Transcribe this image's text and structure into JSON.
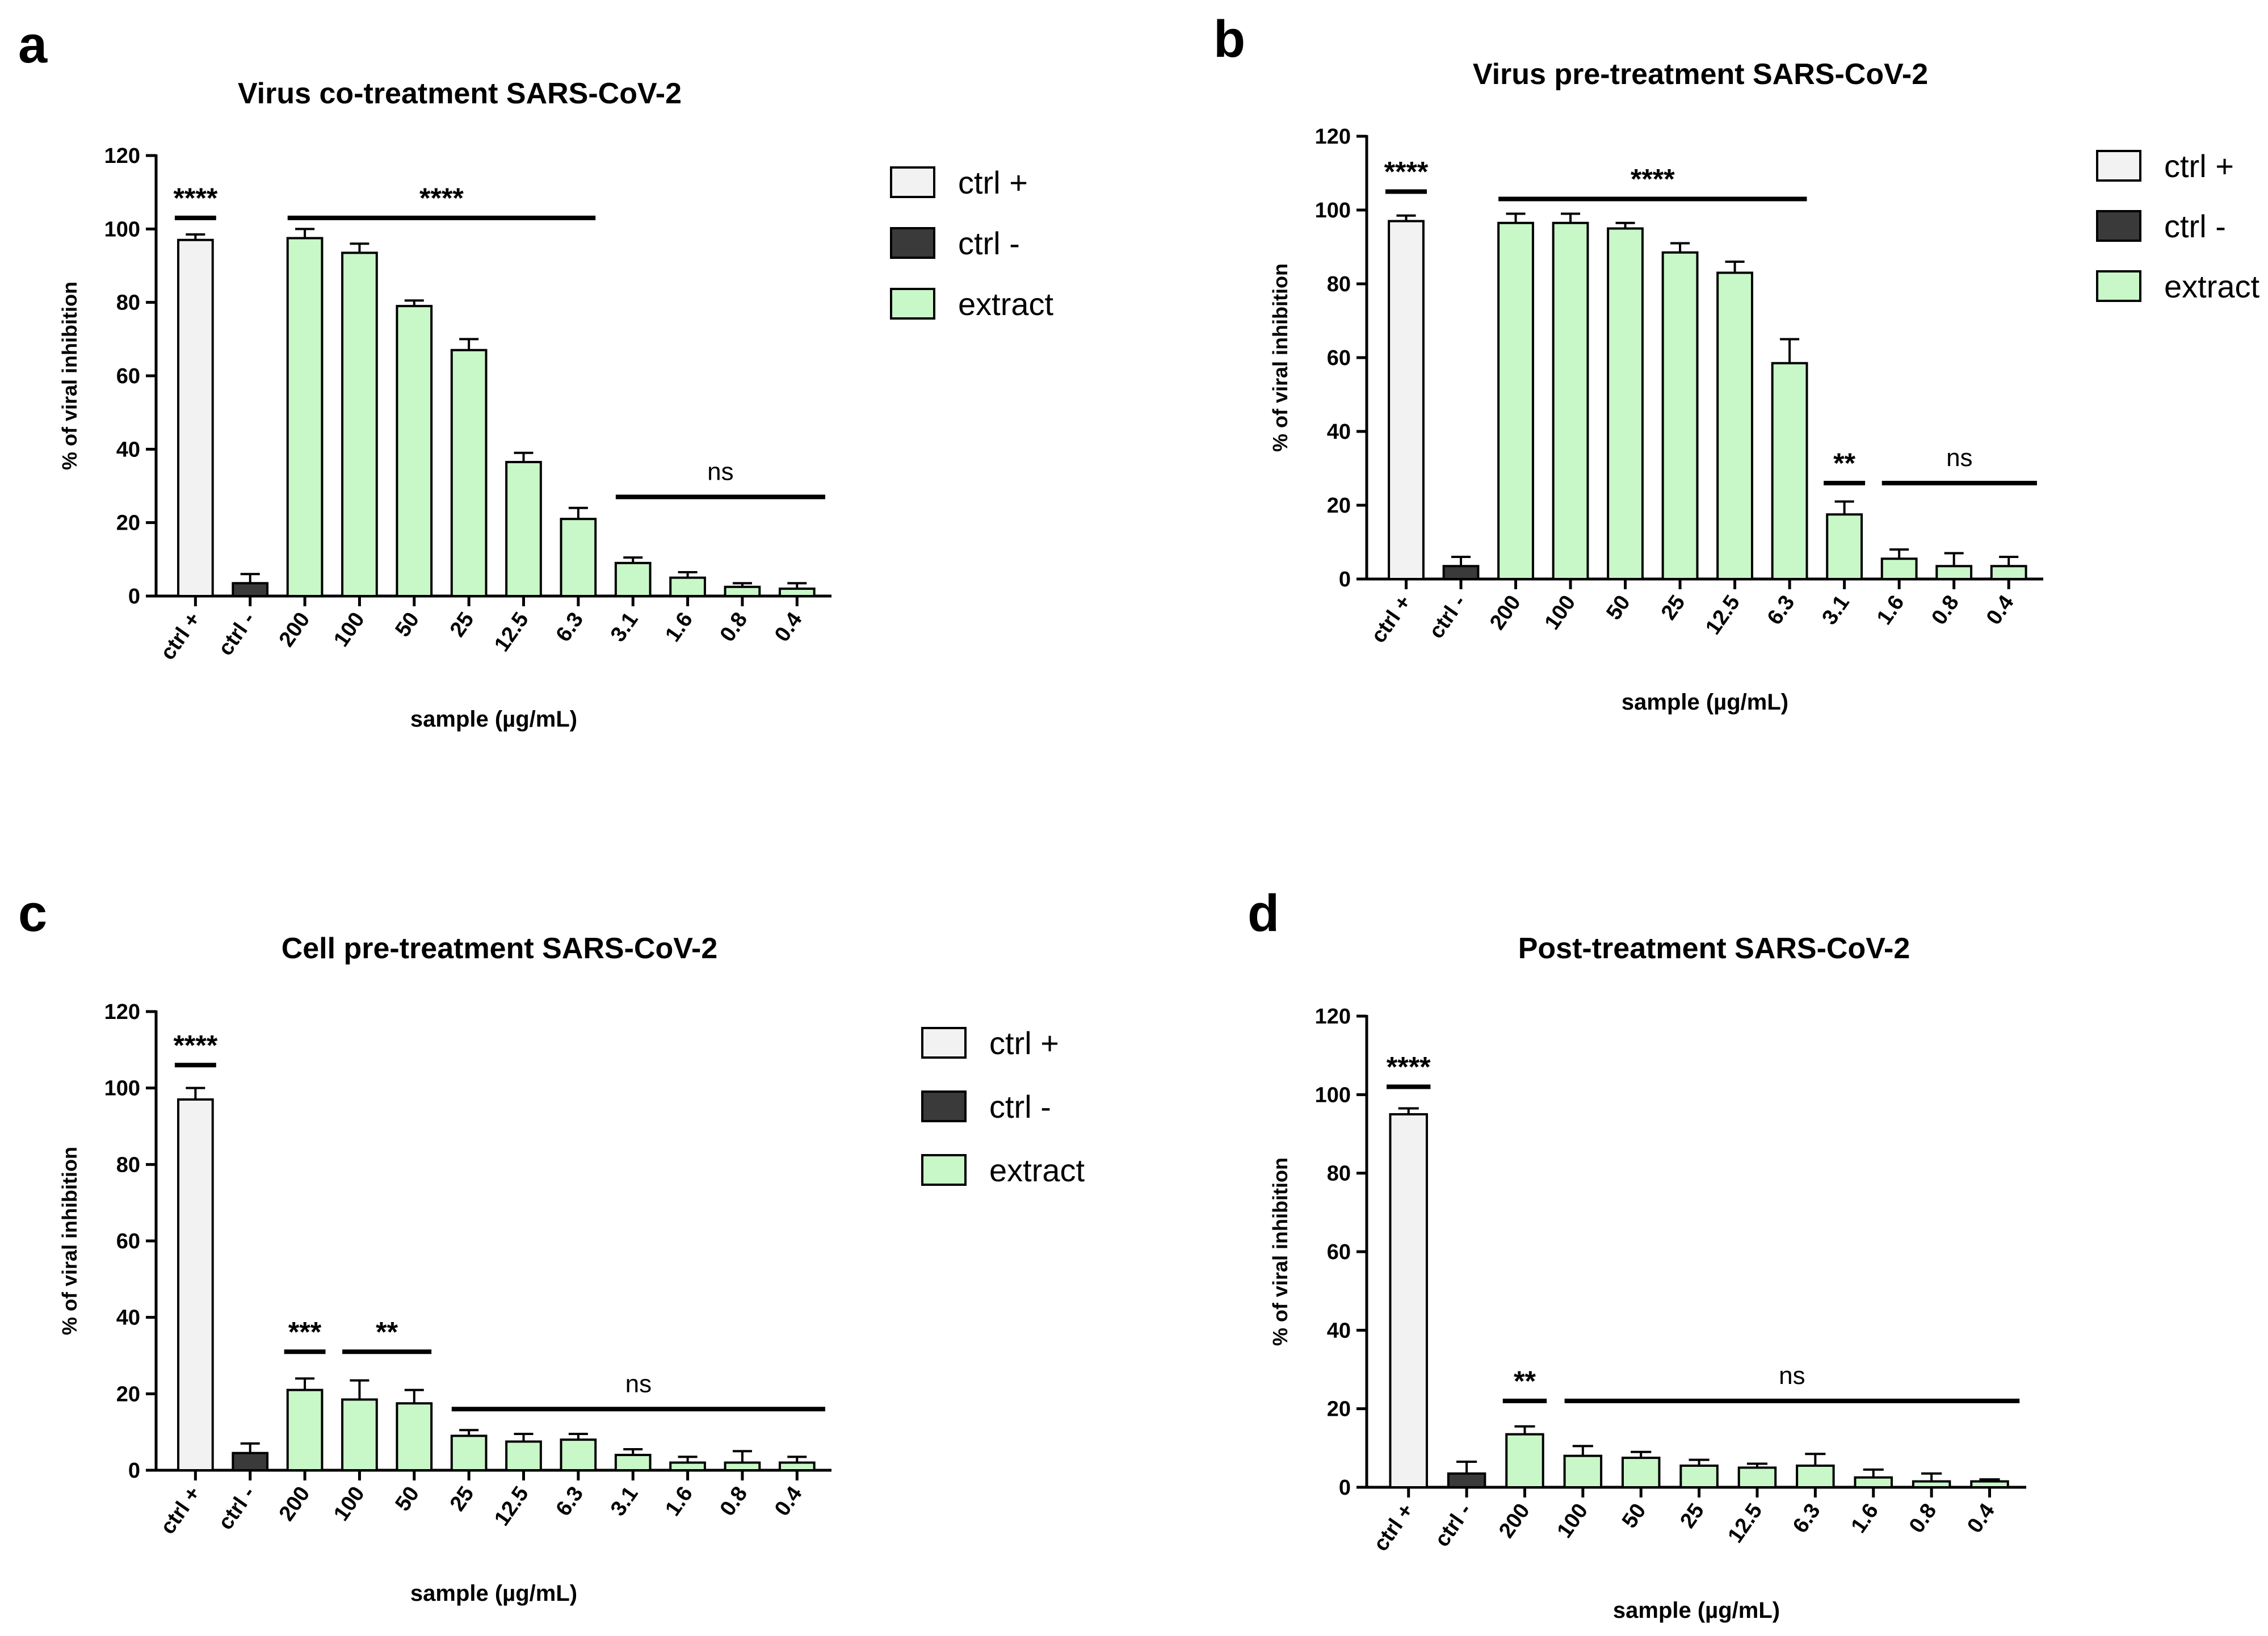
{
  "colors": {
    "ctrl_pos": "#f2f2f2",
    "ctrl_neg": "#3a3a3a",
    "extract": "#c8f7c8",
    "stroke": "#000000"
  },
  "chart_data": [
    {
      "panel": "a",
      "type": "bar",
      "title": "Virus co-treatment SARS-CoV-2",
      "xlabel": "sample (µg/mL)",
      "ylabel": "% of viral inhibition",
      "ylim": [
        0,
        120
      ],
      "yticks": [
        0,
        20,
        40,
        60,
        80,
        100,
        120
      ],
      "categories": [
        "ctrl +",
        "ctrl -",
        "200",
        "100",
        "50",
        "25",
        "12.5",
        "6.3",
        "3.1",
        "1.6",
        "0.8",
        "0.4"
      ],
      "groups": [
        "ctrl +",
        "ctrl -",
        "extract",
        "extract",
        "extract",
        "extract",
        "extract",
        "extract",
        "extract",
        "extract",
        "extract",
        "extract"
      ],
      "values": [
        97,
        3.5,
        97.5,
        93.5,
        79,
        67,
        36.5,
        21,
        9,
        5,
        2.5,
        2
      ],
      "errors": [
        1.5,
        2.5,
        2.5,
        2.5,
        1.5,
        3,
        2.5,
        3,
        1.5,
        1.5,
        1,
        1.5
      ],
      "legend": [
        "ctrl +",
        "ctrl -",
        "extract"
      ],
      "significance": [
        {
          "label": "****",
          "from": 0,
          "to": 0,
          "y": 103
        },
        {
          "label": "****",
          "from": 2,
          "to": 7,
          "y": 103
        },
        {
          "label": "ns",
          "from": 8,
          "to": 11,
          "y": 27
        }
      ]
    },
    {
      "panel": "b",
      "type": "bar",
      "title": "Virus pre-treatment SARS-CoV-2",
      "xlabel": "sample (µg/mL)",
      "ylabel": "% of viral inhibition",
      "ylim": [
        0,
        120
      ],
      "yticks": [
        0,
        20,
        40,
        60,
        80,
        100,
        120
      ],
      "categories": [
        "ctrl +",
        "ctrl -",
        "200",
        "100",
        "50",
        "25",
        "12.5",
        "6.3",
        "3.1",
        "1.6",
        "0.8",
        "0.4"
      ],
      "groups": [
        "ctrl +",
        "ctrl -",
        "extract",
        "extract",
        "extract",
        "extract",
        "extract",
        "extract",
        "extract",
        "extract",
        "extract",
        "extract"
      ],
      "values": [
        97,
        3.5,
        96.5,
        96.5,
        95,
        88.5,
        83,
        58.5,
        17.5,
        5.5,
        3.5,
        3.5
      ],
      "errors": [
        1.5,
        2.5,
        2.5,
        2.5,
        1.5,
        2.5,
        3,
        6.5,
        3.5,
        2.5,
        3.5,
        2.5
      ],
      "legend": [
        "ctrl +",
        "ctrl -",
        "extract"
      ],
      "significance": [
        {
          "label": "****",
          "from": 0,
          "to": 0,
          "y": 105
        },
        {
          "label": "****",
          "from": 2,
          "to": 7,
          "y": 103
        },
        {
          "label": "**",
          "from": 8,
          "to": 8,
          "y": 26
        },
        {
          "label": "ns",
          "from": 9,
          "to": 11,
          "y": 26
        }
      ]
    },
    {
      "panel": "c",
      "type": "bar",
      "title": "Cell pre-treatment SARS-CoV-2",
      "xlabel": "sample (µg/mL)",
      "ylabel": "% of viral inhibition",
      "ylim": [
        0,
        120
      ],
      "yticks": [
        0,
        20,
        40,
        60,
        80,
        100,
        120
      ],
      "categories": [
        "ctrl +",
        "ctrl -",
        "200",
        "100",
        "50",
        "25",
        "12.5",
        "6.3",
        "3.1",
        "1.6",
        "0.8",
        "0.4"
      ],
      "groups": [
        "ctrl +",
        "ctrl -",
        "extract",
        "extract",
        "extract",
        "extract",
        "extract",
        "extract",
        "extract",
        "extract",
        "extract",
        "extract"
      ],
      "values": [
        97,
        4.5,
        21,
        18.5,
        17.5,
        9,
        7.5,
        8,
        4,
        2,
        2,
        2
      ],
      "errors": [
        3,
        2.5,
        3,
        5,
        3.5,
        1.5,
        2,
        1.5,
        1.5,
        1.5,
        3,
        1.5
      ],
      "legend": [
        "ctrl +",
        "ctrl -",
        "extract"
      ],
      "significance": [
        {
          "label": "****",
          "from": 0,
          "to": 0,
          "y": 106
        },
        {
          "label": "***",
          "from": 2,
          "to": 2,
          "y": 31
        },
        {
          "label": "**",
          "from": 3,
          "to": 4,
          "y": 31
        },
        {
          "label": "ns",
          "from": 5,
          "to": 11,
          "y": 16
        }
      ]
    },
    {
      "panel": "d",
      "type": "bar",
      "title": "Post-treatment SARS-CoV-2",
      "xlabel": "sample (µg/mL)",
      "ylabel": "% of viral inhibition",
      "ylim": [
        0,
        120
      ],
      "yticks": [
        0,
        20,
        40,
        60,
        80,
        100,
        120
      ],
      "categories": [
        "ctrl +",
        "ctrl -",
        "200",
        "100",
        "50",
        "25",
        "12.5",
        "6.3",
        "1.6",
        "0.8",
        "0.4"
      ],
      "groups": [
        "ctrl +",
        "ctrl -",
        "extract",
        "extract",
        "extract",
        "extract",
        "extract",
        "extract",
        "extract",
        "extract",
        "extract"
      ],
      "values": [
        95,
        3.5,
        13.5,
        8,
        7.5,
        5.5,
        5,
        5.5,
        2.5,
        1.5,
        1.5
      ],
      "errors": [
        1.5,
        3,
        2,
        2.5,
        1.5,
        1.5,
        1,
        3,
        2,
        2,
        0.5
      ],
      "legend": [],
      "significance": [
        {
          "label": "****",
          "from": 0,
          "to": 0,
          "y": 102
        },
        {
          "label": "**",
          "from": 2,
          "to": 2,
          "y": 22
        },
        {
          "label": "ns",
          "from": 3,
          "to": 10,
          "y": 22
        }
      ]
    }
  ]
}
